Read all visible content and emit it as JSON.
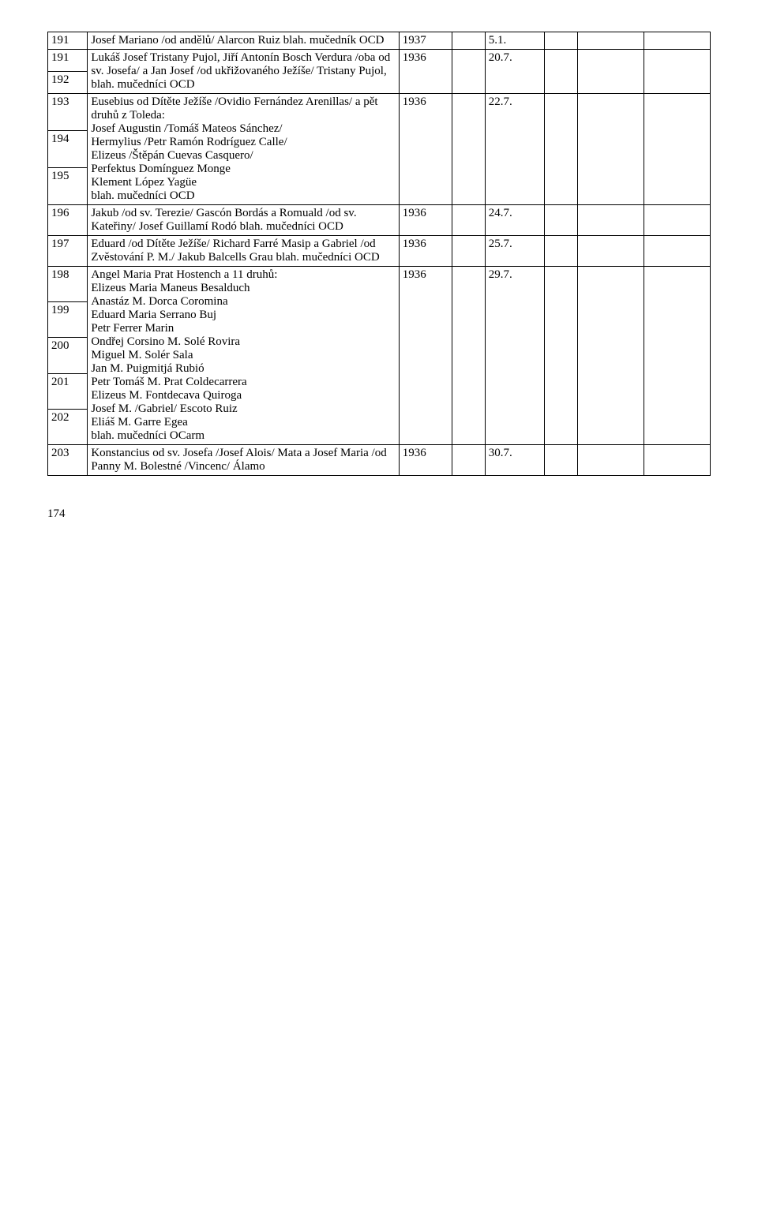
{
  "page_number": "174",
  "rows": [
    {
      "ids": [
        "191"
      ],
      "desc": "Josef Mariano /od andělů/ Alarcon Ruiz blah. mučedník OCD",
      "year": "1937",
      "date": "5.1."
    },
    {
      "ids": [
        "191",
        "192"
      ],
      "desc": "Lukáš Josef Tristany Pujol, Jiří Antonín Bosch Verdura /oba od sv. Josefa/ a Jan Josef /od ukřižovaného Ježíše/ Tristany Pujol, blah. mučedníci OCD",
      "year": "1936",
      "date": "20.7."
    },
    {
      "ids": [
        "193",
        "194",
        "195"
      ],
      "desc": "Eusebius od Dítěte Ježíše /Ovidio Fernández Arenillas/ a pět druhů z Toleda:\nJosef Augustin /Tomáš Mateos Sánchez/\nHermylius /Petr Ramón Rodríguez Calle/\nElizeus /Štěpán Cuevas Casquero/\nPerfektus Domínguez Monge\nKlement López Yagüe\nblah. mučedníci OCD",
      "year": "1936",
      "date": "22.7."
    },
    {
      "ids": [
        "196"
      ],
      "desc": "Jakub /od sv. Terezie/ Gascón Bordás a Romuald /od sv. Kateřiny/ Josef Guillamí Rodó blah. mučedníci OCD",
      "year": "1936",
      "date": "24.7."
    },
    {
      "ids": [
        "197"
      ],
      "desc": "Eduard /od Dítěte Ježíše/ Richard Farré Masip a Gabriel /od Zvěstování P. M./ Jakub Balcells Grau  blah. mučedníci OCD",
      "year": "1936",
      "date": "25.7."
    },
    {
      "ids": [
        "198",
        "199",
        "200",
        "201",
        "202"
      ],
      "desc": "Angel Maria Prat Hostench a 11 druhů:\nElizeus Maria Maneus Besalduch\nAnastáz M. Dorca Coromina\nEduard Maria Serrano Buj\nPetr Ferrer Marin\nOndřej Corsino M. Solé Rovira\nMiguel M. Solér Sala\nJan M. Puigmitjá Rubió\nPetr Tomáš M. Prat Coldecarrera\nElizeus M. Fontdecava Quiroga\nJosef M.  /Gabriel/ Escoto Ruiz\nEliáš M. Garre Egea\nblah. mučedníci OCarm",
      "year": "1936",
      "date": "29.7."
    },
    {
      "ids": [
        "203"
      ],
      "desc": "Konstancius od sv. Josefa /Josef Alois/ Mata a Josef Maria /od Panny M. Bolestné /Vincenc/ Álamo",
      "year": "1936",
      "date": "30.7."
    }
  ]
}
